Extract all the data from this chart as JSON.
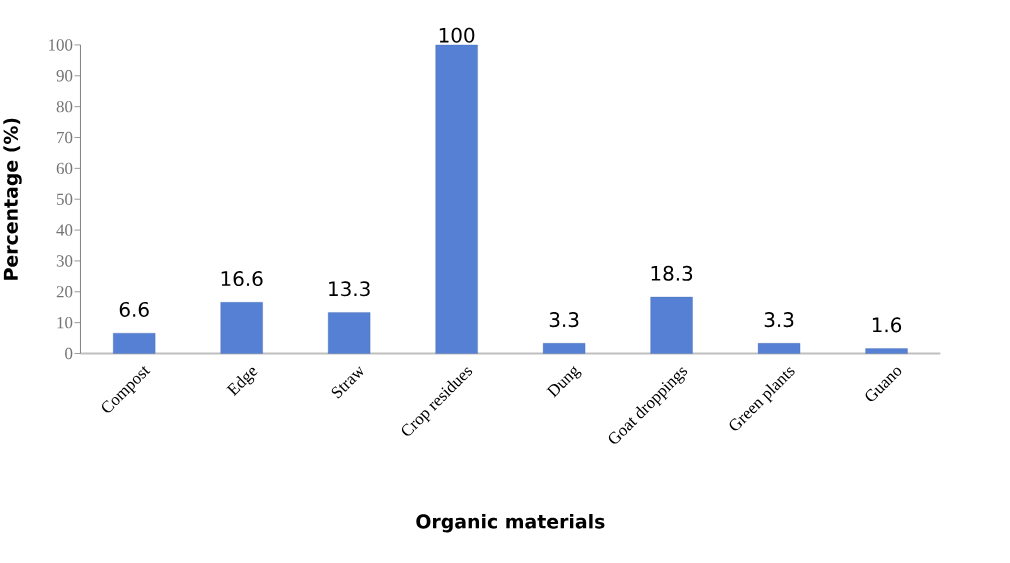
{
  "chart_data": {
    "type": "bar",
    "xlabel": "Organic materials",
    "ylabel": "Percentage (%)",
    "categories": [
      "Compost",
      "Edge",
      "Straw",
      "Crop residues",
      "Dung",
      "Goat droppings",
      "Green plants",
      "Guano"
    ],
    "values": [
      6.6,
      16.6,
      13.3,
      100,
      3.3,
      18.3,
      3.3,
      1.6
    ],
    "value_labels": [
      "6.6",
      "16.6",
      "13.3",
      "100",
      "3.3",
      "18.3",
      "3.3",
      "1.6"
    ],
    "color": "#5580d4",
    "ylim": [
      0,
      100
    ],
    "yticks": [
      0,
      10,
      20,
      30,
      40,
      50,
      60,
      70,
      80,
      90,
      100
    ]
  }
}
